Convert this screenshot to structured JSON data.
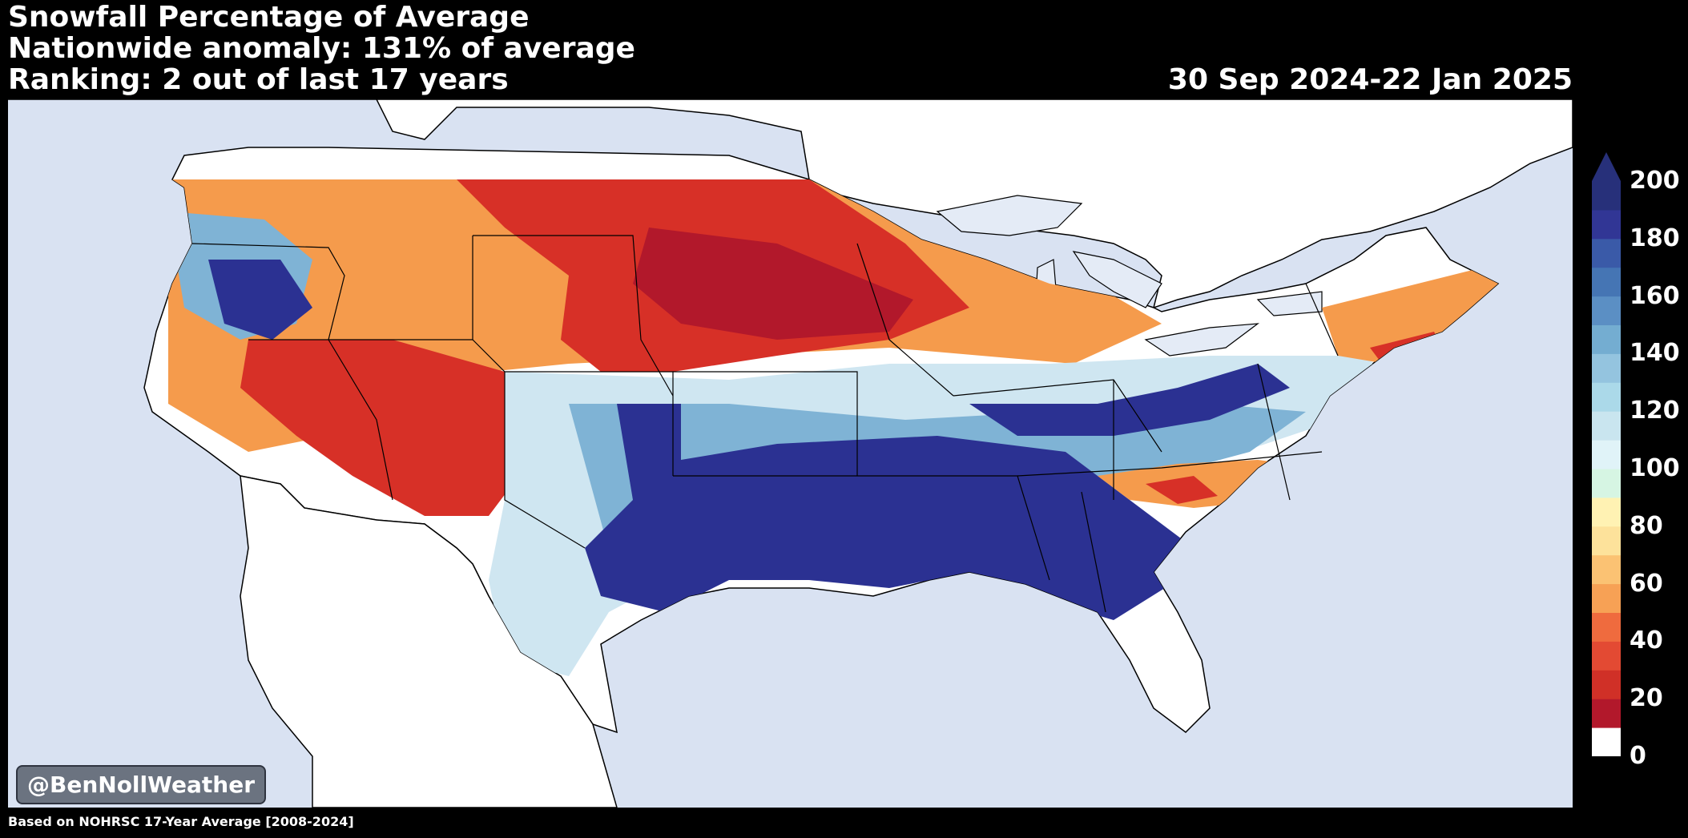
{
  "header": {
    "title": "Snowfall Percentage of Average",
    "anomaly": "Nationwide anomaly: 131% of average",
    "ranking": "Ranking: 2 out of last 17 years",
    "date_range": "30 Sep 2024-22 Jan 2025"
  },
  "watermark": "@BenNollWeather",
  "footer": "Based on NOHRSC 17-Year Average [2008-2024]",
  "colorbar": {
    "ticks": [
      "0",
      "20",
      "40",
      "60",
      "80",
      "100",
      "120",
      "140",
      "160",
      "180",
      "200"
    ],
    "colors": [
      "#ffffff",
      "#b2182b",
      "#d03027",
      "#e34a33",
      "#ef6b3e",
      "#f7a155",
      "#fbc273",
      "#fde29b",
      "#fff2b3",
      "#d6f5e3",
      "#e0f3f8",
      "#c9e5ef",
      "#abd9e9",
      "#94c4df",
      "#74add1",
      "#5b8fc4",
      "#4575b4",
      "#3a5aa8",
      "#313695",
      "#27307a"
    ],
    "extend_color": "#27307a"
  },
  "map_colors": {
    "ocean": "#d9e2f2",
    "land": "#ffffff",
    "great_lakes": "#e4ebf6",
    "high_blue": "#2b3192",
    "mid_blue": "#7fb3d5",
    "light_blue": "#cfe6f1",
    "orange": "#f59b4c",
    "red": "#d73027",
    "dark_red": "#b2182b"
  }
}
